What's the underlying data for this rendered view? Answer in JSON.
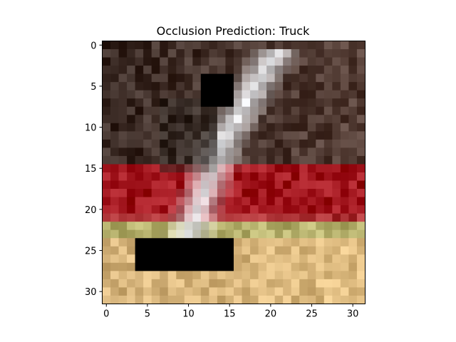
{
  "figure": {
    "title": "Occlusion Prediction: Truck",
    "image_grid": {
      "rows": 32,
      "cols": 32
    },
    "x_ticks": [
      "0",
      "5",
      "10",
      "15",
      "20",
      "25",
      "30"
    ],
    "y_ticks": [
      "0",
      "5",
      "10",
      "15",
      "20",
      "25",
      "30"
    ],
    "occlusion_color": "#000000",
    "occlusions": [
      {
        "row_start": 4,
        "row_end": 7,
        "col_start": 12,
        "col_end": 15
      },
      {
        "row_start": 24,
        "row_end": 27,
        "col_start": 4,
        "col_end": 15
      }
    ],
    "scene_colors": {
      "dark_background": "#3a2a24",
      "red_stripe": "#a0141c",
      "olive_stripe": "#b3ae6a",
      "wooden_floor": "#d4b27a",
      "white_object": "#e6e7ea"
    }
  }
}
